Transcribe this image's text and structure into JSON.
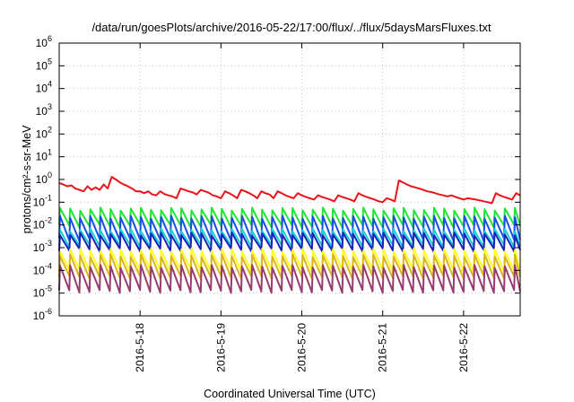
{
  "chart_data": {
    "type": "line",
    "title": "/data/run/goesPlots/archive/2016-05-22/17:00/flux/../flux/5daysMarsFluxes.txt",
    "xlabel": "Coordinated Universal Time (UTC)",
    "ylabel": "protons/cm²-s-sr-MeV",
    "y_scale": "log",
    "ylim": [
      1e-06,
      1000000.0
    ],
    "xlim": [
      0,
      5.7
    ],
    "grid": true,
    "x_ticks": [
      {
        "pos": 1.0,
        "label": "2016-5-18"
      },
      {
        "pos": 2.0,
        "label": "2016-5-19"
      },
      {
        "pos": 3.0,
        "label": "2016-5-20"
      },
      {
        "pos": 4.0,
        "label": "2016-5-21"
      },
      {
        "pos": 5.0,
        "label": "2016-5-22"
      }
    ],
    "y_ticks": [
      {
        "exp": -6,
        "label": "10",
        "sup": "-6"
      },
      {
        "exp": -5,
        "label": "10",
        "sup": "-5"
      },
      {
        "exp": -4,
        "label": "10",
        "sup": "-4"
      },
      {
        "exp": -3,
        "label": "10",
        "sup": "-3"
      },
      {
        "exp": -2,
        "label": "10",
        "sup": "-2"
      },
      {
        "exp": -1,
        "label": "10",
        "sup": "-1"
      },
      {
        "exp": 0,
        "label": "10",
        "sup": "0"
      },
      {
        "exp": 1,
        "label": "10",
        "sup": "1"
      },
      {
        "exp": 2,
        "label": "10",
        "sup": "2"
      },
      {
        "exp": 3,
        "label": "10",
        "sup": "3"
      },
      {
        "exp": 4,
        "label": "10",
        "sup": "4"
      },
      {
        "exp": 5,
        "label": "10",
        "sup": "5"
      },
      {
        "exp": 6,
        "label": "10",
        "sup": "6"
      }
    ],
    "series": [
      {
        "color": "#e8141b",
        "x": [
          0,
          0.05,
          0.1,
          0.15,
          0.2,
          0.25,
          0.3,
          0.35,
          0.4,
          0.45,
          0.5,
          0.55,
          0.6,
          0.65,
          0.7,
          0.75,
          0.8,
          0.85,
          0.9,
          0.95,
          1.0,
          1.05,
          1.1,
          1.15,
          1.2,
          1.25,
          1.3,
          1.35,
          1.4,
          1.45,
          1.5,
          1.55,
          1.6,
          1.65,
          1.7,
          1.75,
          1.8,
          1.85,
          1.9,
          1.95,
          2.0,
          2.05,
          2.1,
          2.15,
          2.2,
          2.25,
          2.3,
          2.35,
          2.4,
          2.45,
          2.5,
          2.55,
          2.6,
          2.65,
          2.7,
          2.75,
          2.8,
          2.85,
          2.9,
          2.95,
          3.0,
          3.05,
          3.1,
          3.15,
          3.2,
          3.25,
          3.3,
          3.35,
          3.4,
          3.45,
          3.5,
          3.55,
          3.6,
          3.65,
          3.7,
          3.75,
          3.8,
          3.85,
          3.9,
          3.95,
          4.0,
          4.05,
          4.1,
          4.15,
          4.2,
          4.25,
          4.3,
          4.35,
          4.4,
          4.45,
          4.5,
          4.55,
          4.6,
          4.65,
          4.7,
          4.75,
          4.8,
          4.85,
          4.9,
          4.95,
          5.0,
          5.05,
          5.1,
          5.15,
          5.2,
          5.25,
          5.3,
          5.35,
          5.4,
          5.45,
          5.5,
          5.55,
          5.6,
          5.65,
          5.7
        ],
        "values": [
          0.7,
          0.6,
          0.5,
          0.55,
          0.4,
          0.35,
          0.3,
          0.5,
          0.35,
          0.45,
          0.35,
          0.6,
          0.4,
          1.3,
          1.0,
          0.75,
          0.6,
          0.5,
          0.4,
          0.3,
          0.3,
          0.25,
          0.3,
          0.22,
          0.2,
          0.3,
          0.23,
          0.2,
          0.18,
          0.15,
          0.4,
          0.35,
          0.3,
          0.27,
          0.22,
          0.35,
          0.3,
          0.26,
          0.2,
          0.18,
          0.15,
          0.3,
          0.25,
          0.2,
          0.15,
          0.35,
          0.3,
          0.25,
          0.2,
          0.15,
          0.3,
          0.25,
          0.22,
          0.15,
          0.3,
          0.25,
          0.2,
          0.17,
          0.15,
          0.25,
          0.2,
          0.17,
          0.15,
          0.13,
          0.2,
          0.17,
          0.15,
          0.13,
          0.11,
          0.2,
          0.17,
          0.15,
          0.13,
          0.11,
          0.25,
          0.2,
          0.17,
          0.15,
          0.13,
          0.11,
          0.1,
          0.15,
          0.13,
          0.11,
          0.9,
          0.75,
          0.6,
          0.5,
          0.45,
          0.4,
          0.35,
          0.3,
          0.28,
          0.25,
          0.22,
          0.2,
          0.18,
          0.2,
          0.17,
          0.15,
          0.13,
          0.15,
          0.14,
          0.13,
          0.12,
          0.11,
          0.1,
          0.09,
          0.25,
          0.2,
          0.17,
          0.15,
          0.13,
          0.25,
          0.2
        ]
      },
      {
        "color": "#1ee632",
        "y_min": 0.009,
        "y_max": 0.05,
        "period": 0.125
      },
      {
        "color": "#1a4ee6",
        "y_min": 0.0022,
        "y_max": 0.022,
        "period": 0.125
      },
      {
        "color": "#12d2d2",
        "y_min": 0.0012,
        "y_max": 0.006,
        "period": 0.125
      },
      {
        "color": "#1a22b8",
        "y_min": 0.0008,
        "y_max": 0.004,
        "period": 0.125
      },
      {
        "color": "#ffff1e",
        "y_min": 0.0001,
        "y_max": 0.0008,
        "period": 0.125
      },
      {
        "color": "#dcb41e",
        "y_min": 5e-05,
        "y_max": 0.00045,
        "period": 0.125
      },
      {
        "color": "#963c6e",
        "y_min": 1.2e-05,
        "y_max": 0.00015,
        "period": 0.125
      }
    ]
  }
}
